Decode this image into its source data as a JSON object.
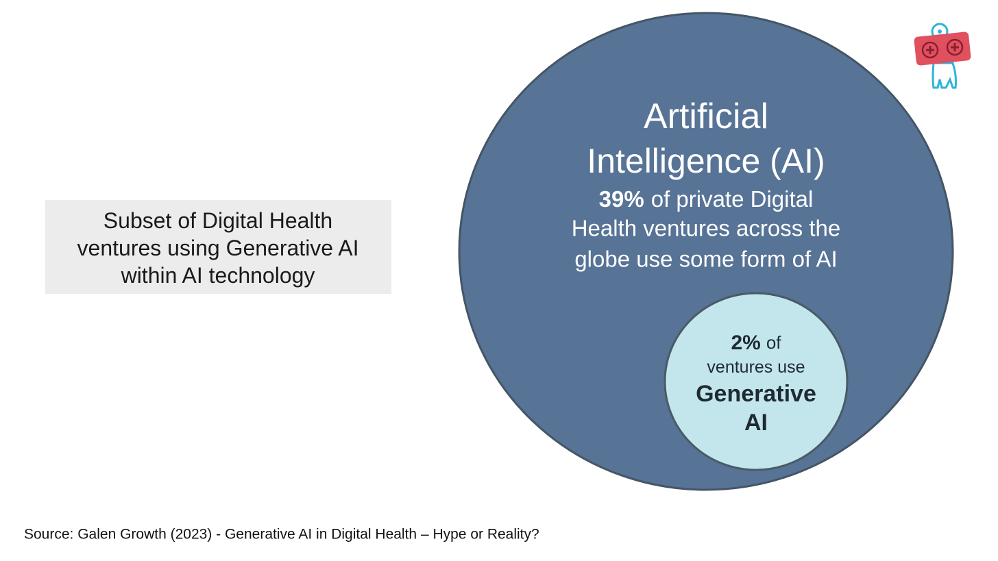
{
  "label_box": {
    "lines": [
      "Subset of Digital Health",
      "ventures using Generative AI",
      "within AI technology"
    ]
  },
  "outer_circle": {
    "title_lines": [
      "Artificial",
      "Intelligence (AI)"
    ],
    "stat": "39%",
    "description_lines": [
      "of private Digital",
      "Health ventures across the",
      "globe use some form of AI"
    ]
  },
  "inner_circle": {
    "stat": "2%",
    "stat_suffix": "of",
    "line": "ventures use",
    "title_lines": [
      "Generative",
      "AI"
    ]
  },
  "source": "Source: Galen Growth (2023) - Generative AI in Digital Health – Hype or Reality?"
}
